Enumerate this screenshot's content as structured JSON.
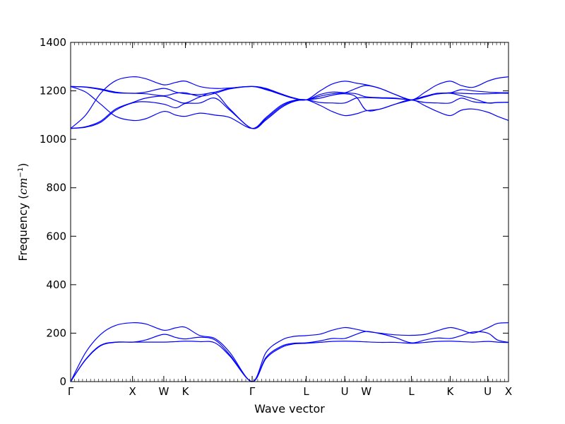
{
  "chart_data": {
    "type": "line",
    "title": "",
    "xlabel": "Wave vector",
    "ylabel": "Frequency (cm⁻¹)",
    "ylabel_parts": {
      "text": "Frequency (",
      "unit": "cm",
      "exp": "−1",
      "close": ")"
    },
    "ylim": [
      0,
      1400
    ],
    "yticks": [
      0,
      200,
      400,
      600,
      800,
      1000,
      1200,
      1400
    ],
    "xlim": [
      0,
      14.57
    ],
    "xticks": [
      {
        "label": "Γ",
        "x": 0
      },
      {
        "label": "X",
        "x": 2.06
      },
      {
        "label": "W",
        "x": 3.1
      },
      {
        "label": "K",
        "x": 3.82
      },
      {
        "label": "Γ",
        "x": 6.04
      },
      {
        "label": "L",
        "x": 7.84
      },
      {
        "label": "U",
        "x": 9.12
      },
      {
        "label": "W",
        "x": 9.84
      },
      {
        "label": "L",
        "x": 11.34
      },
      {
        "label": "K",
        "x": 12.63
      },
      {
        "label": "U",
        "x": 13.88
      },
      {
        "label": "X",
        "x": 14.57
      }
    ],
    "grid": false,
    "line_color": "#0000ff",
    "series": [
      {
        "x": [
          0,
          0.5,
          1.0,
          1.5,
          2.06,
          2.5,
          3.1,
          3.5,
          3.82,
          4.3,
          4.8,
          5.3,
          6.04,
          6.5,
          7.0,
          7.4,
          7.84,
          8.3,
          8.7,
          9.12,
          9.5,
          9.84,
          10.3,
          10.8,
          11.34,
          11.8,
          12.2,
          12.63,
          13.0,
          13.4,
          13.88,
          14.2,
          14.57
        ],
        "values": [
          0,
          90,
          148,
          162,
          163,
          163,
          163,
          165,
          167,
          165,
          160,
          105,
          0,
          95,
          140,
          155,
          158,
          162,
          166,
          167,
          166,
          164,
          162,
          162,
          158,
          162,
          166,
          167,
          165,
          163,
          166,
          163,
          161
        ]
      },
      {
        "x": [
          0,
          0.5,
          1.0,
          1.5,
          2.06,
          2.5,
          3.1,
          3.5,
          3.82,
          4.3,
          4.8,
          5.3,
          6.04,
          6.5,
          7.0,
          7.4,
          7.84,
          8.3,
          8.7,
          9.12,
          9.5,
          9.84,
          10.3,
          10.8,
          11.34,
          11.8,
          12.2,
          12.63,
          13.0,
          13.4,
          13.88,
          14.2,
          14.57
        ],
        "values": [
          0,
          92,
          150,
          163,
          163,
          172,
          195,
          182,
          176,
          183,
          172,
          110,
          0,
          100,
          145,
          158,
          160,
          168,
          178,
          178,
          195,
          207,
          198,
          182,
          160,
          172,
          180,
          178,
          190,
          205,
          200,
          172,
          162
        ]
      },
      {
        "x": [
          0,
          0.5,
          1.0,
          1.5,
          2.06,
          2.5,
          3.1,
          3.5,
          3.82,
          4.3,
          4.8,
          5.3,
          6.04,
          6.5,
          7.0,
          7.4,
          7.84,
          8.3,
          8.7,
          9.12,
          9.5,
          9.84,
          10.3,
          10.8,
          11.34,
          11.8,
          12.2,
          12.63,
          13.0,
          13.4,
          13.88,
          14.2,
          14.57
        ],
        "values": [
          0,
          120,
          195,
          232,
          243,
          238,
          212,
          222,
          224,
          190,
          178,
          120,
          0,
          120,
          170,
          186,
          190,
          196,
          212,
          223,
          216,
          207,
          200,
          193,
          191,
          195,
          210,
          223,
          213,
          200,
          222,
          240,
          243
        ]
      },
      {
        "x": [
          0,
          0.5,
          1.0,
          1.5,
          2.06,
          2.5,
          3.1,
          3.5,
          3.82,
          4.3,
          4.8,
          5.3,
          6.04,
          6.5,
          7.0,
          7.4,
          7.84,
          8.3,
          8.7,
          9.12,
          9.5,
          9.84,
          10.3,
          10.8,
          11.34,
          11.8,
          12.2,
          12.63,
          13.0,
          13.4,
          13.88,
          14.2,
          14.57
        ],
        "values": [
          1045,
          1050,
          1070,
          1120,
          1150,
          1155,
          1145,
          1130,
          1148,
          1150,
          1170,
          1120,
          1045,
          1080,
          1130,
          1155,
          1163,
          1152,
          1150,
          1150,
          1170,
          1172,
          1170,
          1168,
          1162,
          1152,
          1150,
          1150,
          1170,
          1155,
          1150,
          1152,
          1153
        ]
      },
      {
        "x": [
          0,
          0.5,
          1.0,
          1.5,
          2.06,
          2.5,
          3.1,
          3.5,
          3.82,
          4.3,
          4.8,
          5.3,
          6.04,
          6.5,
          7.0,
          7.4,
          7.84,
          8.3,
          8.7,
          9.12,
          9.5,
          9.84,
          10.3,
          10.8,
          11.34,
          11.8,
          12.2,
          12.63,
          13.0,
          13.4,
          13.88,
          14.2,
          14.57
        ],
        "values": [
          1045,
          1052,
          1075,
          1125,
          1152,
          1170,
          1178,
          1160,
          1150,
          1175,
          1190,
          1125,
          1045,
          1085,
          1135,
          1158,
          1163,
          1170,
          1182,
          1188,
          1175,
          1120,
          1125,
          1145,
          1162,
          1178,
          1187,
          1190,
          1180,
          1168,
          1150,
          1152,
          1153
        ]
      },
      {
        "x": [
          0,
          0.5,
          1.0,
          1.5,
          2.06,
          2.5,
          3.1,
          3.5,
          3.82,
          4.3,
          4.8,
          5.3,
          6.04,
          6.5,
          7.0,
          7.4,
          7.84,
          8.3,
          8.7,
          9.12,
          9.5,
          9.84,
          10.3,
          10.8,
          11.34,
          11.8,
          12.2,
          12.63,
          13.0,
          13.4,
          13.88,
          14.2,
          14.57
        ],
        "values": [
          1218,
          1195,
          1145,
          1095,
          1078,
          1085,
          1115,
          1100,
          1095,
          1108,
          1100,
          1090,
          1045,
          1090,
          1140,
          1160,
          1163,
          1140,
          1115,
          1098,
          1105,
          1118,
          1125,
          1145,
          1163,
          1138,
          1115,
          1098,
          1120,
          1125,
          1112,
          1095,
          1078
        ]
      },
      {
        "x": [
          0,
          0.5,
          1.0,
          1.5,
          2.06,
          2.5,
          3.1,
          3.5,
          3.82,
          4.3,
          4.8,
          5.3,
          6.04,
          6.5,
          7.0,
          7.4,
          7.84,
          8.3,
          8.7,
          9.12,
          9.5,
          9.84,
          10.3,
          10.8,
          11.34,
          11.8,
          12.2,
          12.63,
          13.0,
          13.4,
          13.88,
          14.2,
          14.57
        ],
        "values": [
          1218,
          1215,
          1205,
          1192,
          1190,
          1188,
          1180,
          1190,
          1192,
          1178,
          1190,
          1208,
          1218,
          1208,
          1185,
          1170,
          1163,
          1178,
          1188,
          1192,
          1210,
          1222,
          1210,
          1185,
          1163,
          1175,
          1188,
          1192,
          1190,
          1188,
          1188,
          1190,
          1190
        ]
      },
      {
        "x": [
          0,
          0.5,
          1.0,
          1.5,
          2.06,
          2.5,
          3.1,
          3.5,
          3.82,
          4.3,
          4.8,
          5.3,
          6.04,
          6.5,
          7.0,
          7.4,
          7.84,
          8.3,
          8.7,
          9.12,
          9.5,
          9.84,
          10.3,
          10.8,
          11.34,
          11.8,
          12.2,
          12.63,
          13.0,
          13.4,
          13.88,
          14.2,
          14.57
        ],
        "values": [
          1218,
          1216,
          1208,
          1195,
          1190,
          1195,
          1210,
          1195,
          1188,
          1185,
          1195,
          1210,
          1218,
          1210,
          1188,
          1172,
          1163,
          1185,
          1195,
          1192,
          1188,
          1175,
          1172,
          1170,
          1163,
          1178,
          1190,
          1192,
          1205,
          1200,
          1195,
          1193,
          1192
        ]
      },
      {
        "x": [
          0,
          0.5,
          1.0,
          1.5,
          2.06,
          2.5,
          3.1,
          3.5,
          3.82,
          4.3,
          4.8,
          5.3,
          6.04,
          6.5,
          7.0,
          7.4,
          7.84,
          8.3,
          8.7,
          9.12,
          9.5,
          9.84,
          10.3,
          10.8,
          11.34,
          11.8,
          12.2,
          12.63,
          13.0,
          13.4,
          13.88,
          14.2,
          14.57
        ],
        "values": [
          1045,
          1100,
          1190,
          1242,
          1258,
          1250,
          1225,
          1235,
          1240,
          1218,
          1210,
          1212,
          1218,
          1205,
          1185,
          1170,
          1163,
          1200,
          1228,
          1240,
          1232,
          1225,
          1210,
          1185,
          1163,
          1195,
          1225,
          1240,
          1222,
          1215,
          1240,
          1252,
          1258
        ]
      }
    ]
  }
}
